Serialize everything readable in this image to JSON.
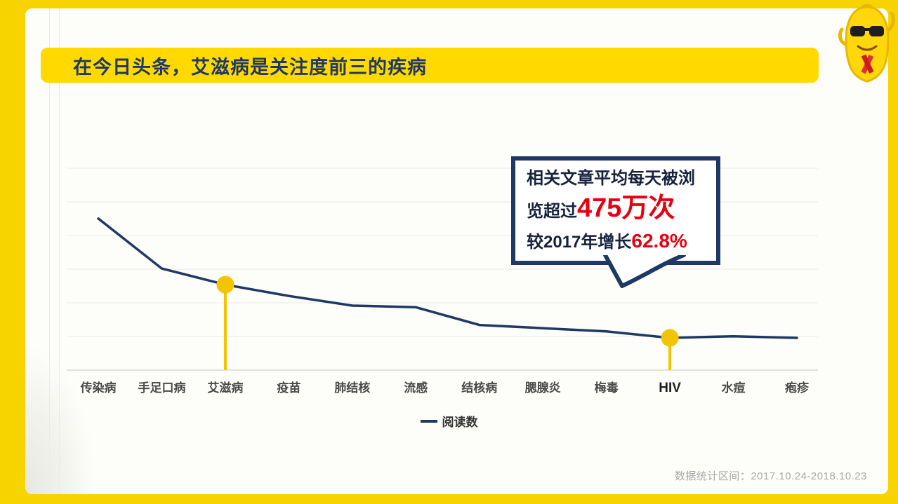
{
  "page": {
    "title": "在今日头条，艾滋病是关注度前三的疾病",
    "footer": "数据统计区间：2017.10.24-2018.10.23"
  },
  "colors": {
    "frame_yellow": "#F7D400",
    "banner_yellow": "#FFD900",
    "navy": "#1F3864",
    "highlight_red": "#E60012",
    "marker_gold": "#F2C500"
  },
  "callout": {
    "line1": "相关文章平均每天被浏",
    "line2_prefix": "览超过",
    "line2_highlight": "475万次",
    "line3_prefix": "较2017年增长",
    "line3_highlight": "62.8%"
  },
  "legend": {
    "label": "阅读数"
  },
  "chart_data": {
    "type": "line",
    "categories": [
      "传染病",
      "手足口病",
      "艾滋病",
      "疫苗",
      "肺结核",
      "流感",
      "结核病",
      "腮腺炎",
      "梅毒",
      "HIV",
      "水痘",
      "疱疹"
    ],
    "series": [
      {
        "name": "阅读数",
        "values": [
          94,
          63,
          53,
          46,
          40,
          39,
          28,
          26,
          24,
          20,
          21,
          20
        ]
      }
    ],
    "highlighted_indices": [
      2,
      9
    ],
    "highlighted_categories": [
      "艾滋病",
      "HIV"
    ],
    "line_color": "#1F3864",
    "marker_color": "#F2C500",
    "grid": true,
    "legend_position": "bottom",
    "ylim": [
      0,
      130
    ],
    "y_axis_labels": false
  }
}
